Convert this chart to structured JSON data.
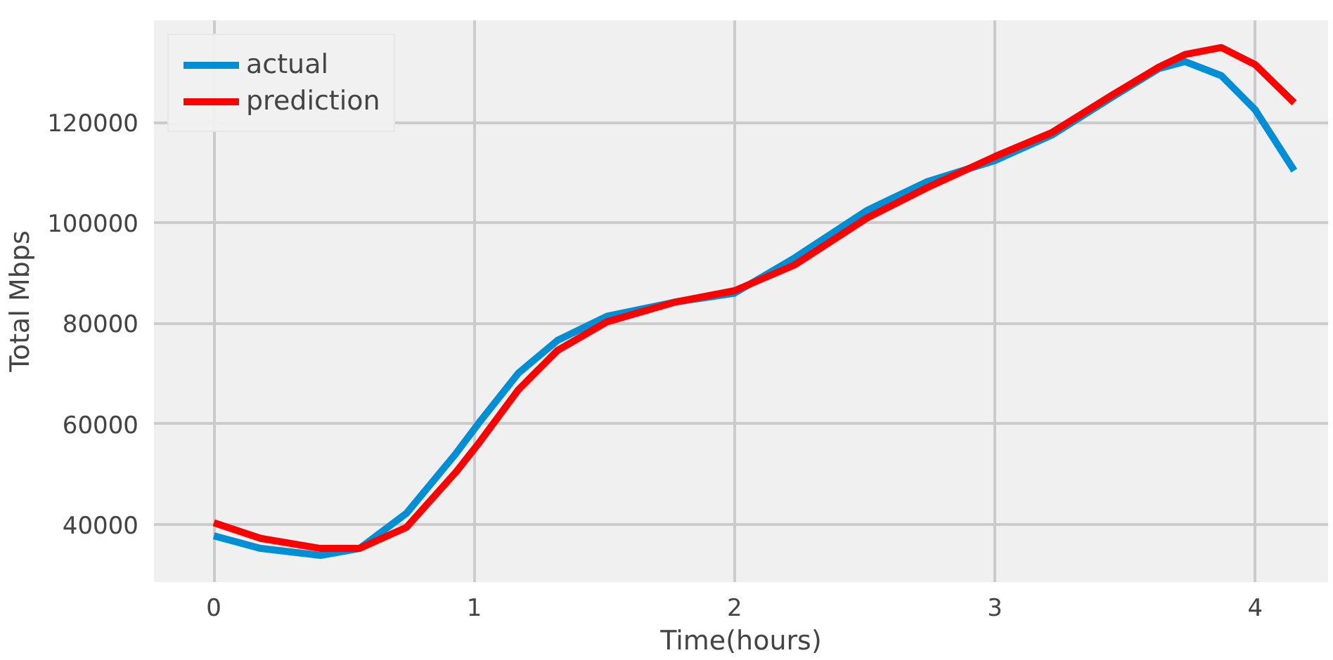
{
  "chart_data": {
    "type": "line",
    "xlabel": "Time(hours)",
    "ylabel": "Total Mbps",
    "xlim": [
      -0.23,
      4.28
    ],
    "ylim": [
      28500,
      140300
    ],
    "xticks": [
      0,
      1,
      2,
      3,
      4
    ],
    "yticks": [
      40000,
      60000,
      80000,
      100000,
      120000
    ],
    "grid": true,
    "legend": "top left",
    "line_style": "solid",
    "series": [
      {
        "name": "actual",
        "color": "#008fd5",
        "x": [
          0,
          0.18,
          0.41,
          0.56,
          0.74,
          0.93,
          1.02,
          1.17,
          1.32,
          1.51,
          1.77,
          2.0,
          2.23,
          2.51,
          2.74,
          3.0,
          3.22,
          3.45,
          3.63,
          3.73,
          3.87,
          4.0,
          4.15
        ],
        "values": [
          37700,
          35200,
          33800,
          35200,
          42200,
          54100,
          60300,
          70100,
          76600,
          81400,
          84200,
          86000,
          93000,
          102500,
          108200,
          112400,
          117500,
          125000,
          130700,
          132100,
          129300,
          122500,
          110400
        ]
      },
      {
        "name": "prediction",
        "color": "#ff0000",
        "x": [
          0,
          0.18,
          0.41,
          0.56,
          0.74,
          0.93,
          1.02,
          1.17,
          1.32,
          1.51,
          1.77,
          2.0,
          2.23,
          2.51,
          2.74,
          3.0,
          3.22,
          3.45,
          3.63,
          3.73,
          3.87,
          4.0,
          4.15
        ],
        "values": [
          40300,
          37200,
          35200,
          35200,
          39400,
          50400,
          56300,
          66800,
          74600,
          80300,
          84200,
          86500,
          91600,
          101000,
          107000,
          113200,
          118000,
          125400,
          131000,
          133500,
          134900,
          131500,
          123900
        ]
      }
    ]
  }
}
